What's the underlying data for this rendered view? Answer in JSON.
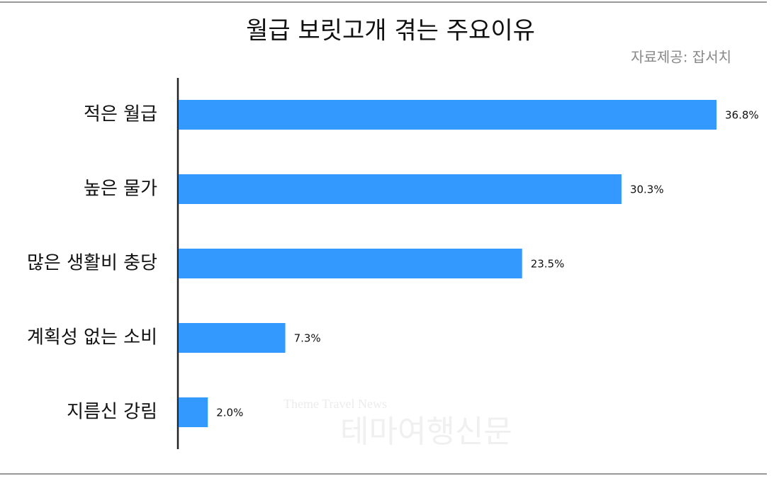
{
  "chart_data": {
    "type": "bar",
    "orientation": "horizontal",
    "title": "월급 보릿고개 겪는 주요이유",
    "source": "자료제공: 잡서치",
    "categories": [
      "적은 월급",
      "높은 물가",
      "많은 생활비 충당",
      "계획성 없는 소비",
      "지름신 강림"
    ],
    "values": [
      36.8,
      30.3,
      23.5,
      7.3,
      2.0
    ],
    "value_labels": [
      "36.8%",
      "30.3%",
      "23.5%",
      "7.3%",
      "2.0%"
    ],
    "color": "#3399ff",
    "watermark": [
      "Theme Travel News",
      "테마여행신문"
    ]
  }
}
